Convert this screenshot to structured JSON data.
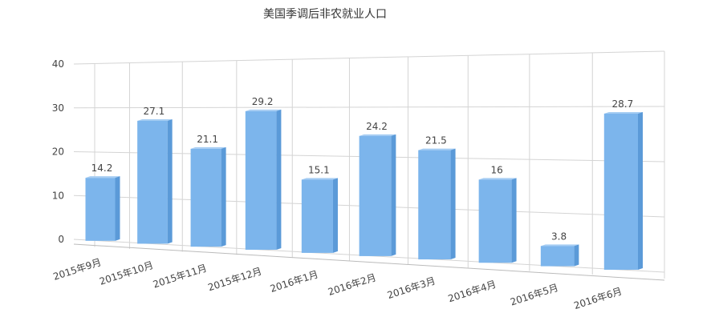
{
  "chart_data": {
    "type": "bar3d",
    "title": "美国季调后非农就业人口",
    "categories": [
      "2015年9月",
      "2015年10月",
      "2015年11月",
      "2015年12月",
      "2016年1月",
      "2016年2月",
      "2016年3月",
      "2016年4月",
      "2016年5月",
      "2016年6月"
    ],
    "values": [
      14.2,
      27.1,
      21.1,
      29.2,
      15.1,
      24.2,
      21.5,
      16,
      3.8,
      28.7
    ],
    "color": "#7cb5ec",
    "ylim": [
      0,
      40
    ],
    "yticks": [
      0,
      10,
      20,
      30,
      40
    ],
    "grid": true
  }
}
